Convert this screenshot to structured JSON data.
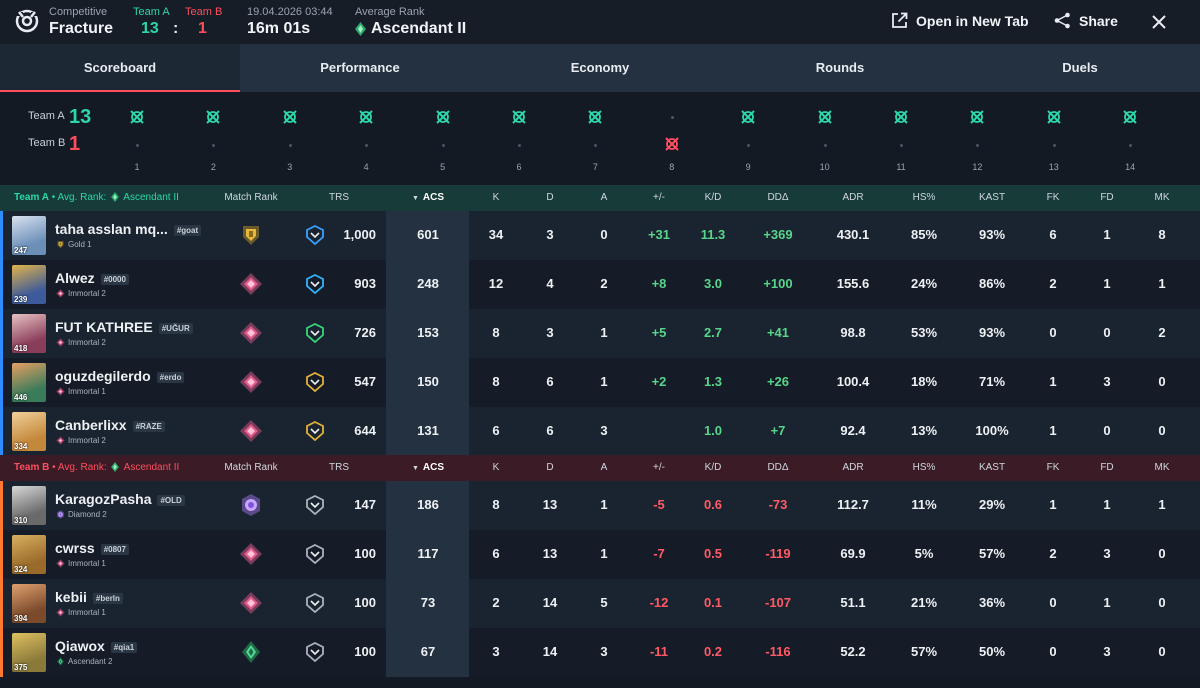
{
  "header": {
    "mode": "Competitive",
    "map": "Fracture",
    "team_a_label": "Team A",
    "team_b_label": "Team B",
    "team_a_score": "13",
    "team_b_score": "1",
    "separator": ":",
    "datetime": "19.04.2026 03:44",
    "duration": "16m 01s",
    "avg_rank_label": "Average Rank",
    "avg_rank": "Ascendant II",
    "open_tab": "Open in New Tab",
    "share": "Share"
  },
  "tabs": [
    "Scoreboard",
    "Performance",
    "Economy",
    "Rounds",
    "Duels"
  ],
  "timeline": {
    "team_a_label": "Team A",
    "team_b_label": "Team B",
    "team_a_score": "13",
    "team_b_score": "1",
    "rounds": [
      "1",
      "2",
      "3",
      "4",
      "5",
      "6",
      "7",
      "8",
      "9",
      "10",
      "11",
      "12",
      "13",
      "14"
    ],
    "winners": [
      "A",
      "A",
      "A",
      "A",
      "A",
      "A",
      "A",
      "B",
      "A",
      "A",
      "A",
      "A",
      "A",
      "A"
    ]
  },
  "columns": {
    "match_rank": "Match Rank",
    "trs": "TRS",
    "acs": "ACS",
    "k": "K",
    "d": "D",
    "a": "A",
    "pm": "+/-",
    "kd": "K/D",
    "dd": "DDΔ",
    "adr": "ADR",
    "hs": "HS%",
    "kast": "KAST",
    "fk": "FK",
    "fd": "FD",
    "mk": "MK"
  },
  "team_a": {
    "label": "Team A",
    "avg_label": "Avg. Rank:",
    "avg_rank": "Ascendant II",
    "players": [
      {
        "name": "taha asslan mq...",
        "tag": "#goat",
        "level": "247",
        "rank": "Gold 1",
        "match_rank": "gold-icon",
        "trs": "1,000",
        "acs": "601",
        "k": "34",
        "d": "3",
        "a": "0",
        "pm": "+31",
        "kd": "11.3",
        "dd": "+369",
        "adr": "430.1",
        "hs": "85%",
        "kast": "93%",
        "fk": "6",
        "fd": "1",
        "mk": "8"
      },
      {
        "name": "Alwez",
        "tag": "#0000",
        "level": "239",
        "rank": "Immortal 2",
        "match_rank": "immortal-icon",
        "trs": "903",
        "acs": "248",
        "k": "12",
        "d": "4",
        "a": "2",
        "pm": "+8",
        "kd": "3.0",
        "dd": "+100",
        "adr": "155.6",
        "hs": "24%",
        "kast": "86%",
        "fk": "2",
        "fd": "1",
        "mk": "1"
      },
      {
        "name": "FUT KATHREE",
        "tag": "#UĞUR",
        "level": "418",
        "rank": "Immortal 2",
        "match_rank": "immortal-icon",
        "trs": "726",
        "acs": "153",
        "k": "8",
        "d": "3",
        "a": "1",
        "pm": "+5",
        "kd": "2.7",
        "dd": "+41",
        "adr": "98.8",
        "hs": "53%",
        "kast": "93%",
        "fk": "0",
        "fd": "0",
        "mk": "2"
      },
      {
        "name": "oguzdegilerdo",
        "tag": "#erdo",
        "level": "446",
        "rank": "Immortal 1",
        "match_rank": "immortal-icon",
        "trs": "547",
        "acs": "150",
        "k": "8",
        "d": "6",
        "a": "1",
        "pm": "+2",
        "kd": "1.3",
        "dd": "+26",
        "adr": "100.4",
        "hs": "18%",
        "kast": "71%",
        "fk": "1",
        "fd": "3",
        "mk": "0"
      },
      {
        "name": "Canberlixx",
        "tag": "#RAZE",
        "level": "334",
        "rank": "Immortal 2",
        "match_rank": "immortal-icon",
        "trs": "644",
        "acs": "131",
        "k": "6",
        "d": "6",
        "a": "3",
        "pm": "",
        "kd": "1.0",
        "dd": "+7",
        "adr": "92.4",
        "hs": "13%",
        "kast": "100%",
        "fk": "1",
        "fd": "0",
        "mk": "0"
      }
    ]
  },
  "team_b": {
    "label": "Team B",
    "avg_label": "Avg. Rank:",
    "avg_rank": "Ascendant II",
    "players": [
      {
        "name": "KaragozPasha",
        "tag": "#OLD",
        "level": "310",
        "rank": "Diamond 2",
        "match_rank": "diamond-icon",
        "trs": "147",
        "acs": "186",
        "k": "8",
        "d": "13",
        "a": "1",
        "pm": "-5",
        "kd": "0.6",
        "dd": "-73",
        "adr": "112.7",
        "hs": "11%",
        "kast": "29%",
        "fk": "1",
        "fd": "1",
        "mk": "1"
      },
      {
        "name": "cwrss",
        "tag": "#0807",
        "level": "324",
        "rank": "Immortal 1",
        "match_rank": "immortal-icon",
        "trs": "100",
        "acs": "117",
        "k": "6",
        "d": "13",
        "a": "1",
        "pm": "-7",
        "kd": "0.5",
        "dd": "-119",
        "adr": "69.9",
        "hs": "5%",
        "kast": "57%",
        "fk": "2",
        "fd": "3",
        "mk": "0"
      },
      {
        "name": "kebii",
        "tag": "#berln",
        "level": "394",
        "rank": "Immortal 1",
        "match_rank": "immortal-icon",
        "trs": "100",
        "acs": "73",
        "k": "2",
        "d": "14",
        "a": "5",
        "pm": "-12",
        "kd": "0.1",
        "dd": "-107",
        "adr": "51.1",
        "hs": "21%",
        "kast": "36%",
        "fk": "0",
        "fd": "1",
        "mk": "0"
      },
      {
        "name": "Qiawox",
        "tag": "#qia1",
        "level": "375",
        "rank": "Ascendant 2",
        "match_rank": "ascendant-icon",
        "trs": "100",
        "acs": "67",
        "k": "3",
        "d": "14",
        "a": "3",
        "pm": "-11",
        "kd": "0.2",
        "dd": "-116",
        "adr": "52.2",
        "hs": "57%",
        "kast": "50%",
        "fk": "0",
        "fd": "3",
        "mk": "0"
      }
    ]
  },
  "colors": {
    "team_a": "#2ed6a6",
    "team_b": "#ff4d5e",
    "positive": "#57d58a",
    "negative": "#ff5a66"
  }
}
